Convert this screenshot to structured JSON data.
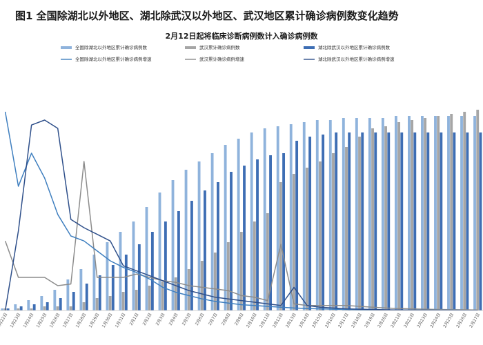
{
  "chart_data": {
    "type": "bar",
    "title": "图1 全国除湖北以外地区、湖北除武汉以外地区、武汉地区累计确诊病例数变化趋势",
    "subtitle": "2月12日起将临床诊断病例数计入确诊病例数",
    "colors": {
      "national_bar": "#8fb3dc",
      "wuhan_bar": "#a6a6a6",
      "hubei_bar": "#3e6eb4",
      "national_line": "#3f7fbf",
      "wuhan_line": "#8c8c8c",
      "hubei_line": "#2e4f8a"
    },
    "categories": [
      "1月22日",
      "1月23日",
      "1月24日",
      "1月25日",
      "1月26日",
      "1月27日",
      "1月28日",
      "1月29日",
      "1月30日",
      "1月31日",
      "2月1日",
      "2月2日",
      "2月3日",
      "2月4日",
      "2月5日",
      "2月6日",
      "2月7日",
      "2月8日",
      "2月9日",
      "2月10日",
      "2月11日",
      "2月12日",
      "2月13日",
      "2月14日",
      "2月15日",
      "2月16日",
      "2月17日",
      "2月18日",
      "2月19日",
      "2月20日",
      "2月21日",
      "2月22日",
      "2月23日",
      "2月24日",
      "2月25日",
      "2月26日",
      "2月27日"
    ],
    "legend": [
      {
        "label": "全国除湖北以外地区累计确诊病例数",
        "series": "national_cum",
        "kind": "bar",
        "color_key": "national_bar"
      },
      {
        "label": "武汉累计确诊病例数",
        "series": "wuhan_cum",
        "kind": "bar",
        "color_key": "wuhan_bar"
      },
      {
        "label": "湖北除武汉以外地区累计确诊病例数",
        "series": "hubei_cum",
        "kind": "bar",
        "color_key": "hubei_bar"
      },
      {
        "label": "全国除湖北以外地区累计确诊病例增速",
        "series": "national_growth",
        "kind": "line",
        "color_key": "national_line"
      },
      {
        "label": "武汉累计确诊病例增速",
        "series": "wuhan_growth",
        "kind": "line",
        "color_key": "wuhan_line"
      },
      {
        "label": "湖北除武汉以外地区累计确诊病例增速",
        "series": "hubei_growth",
        "kind": "line",
        "color_key": "hubei_line"
      }
    ],
    "series": [
      {
        "name": "全国除湖北以外地区累计确诊病例数",
        "key": "national_cum",
        "axis": "bar",
        "values": [
          1,
          3,
          5,
          7,
          10,
          15,
          20,
          27,
          33,
          38,
          43,
          50,
          57,
          63,
          68,
          72,
          76,
          80,
          83,
          86,
          88,
          89,
          90,
          91,
          92,
          92,
          93,
          93,
          93,
          93,
          94,
          94,
          94,
          94,
          94,
          94,
          94
        ]
      },
      {
        "name": "武汉累计确诊病例数",
        "key": "wuhan_cum",
        "axis": "bar",
        "values": [
          1,
          1,
          1,
          2,
          2,
          2,
          4,
          6,
          7,
          9,
          10,
          12,
          14,
          16,
          20,
          24,
          28,
          33,
          38,
          43,
          47,
          62,
          66,
          69,
          72,
          76,
          79,
          84,
          88,
          89,
          91,
          92,
          93,
          94,
          95,
          96,
          97
        ]
      },
      {
        "name": "湖北除武汉以外地区累计确诊病例数",
        "key": "hubei_cum",
        "axis": "bar",
        "values": [
          1,
          2,
          3,
          4,
          6,
          9,
          13,
          17,
          22,
          27,
          32,
          38,
          43,
          48,
          53,
          58,
          62,
          67,
          70,
          73,
          75,
          76,
          82,
          84,
          85,
          86,
          86,
          86,
          86,
          86,
          86,
          86,
          86,
          86,
          86,
          86,
          86
        ]
      },
      {
        "name": "全国除湖北以外地区累计确诊病例增速",
        "key": "national_growth",
        "axis": "line",
        "values": [
          120,
          75,
          95,
          80,
          58,
          45,
          42,
          36,
          30,
          26,
          23,
          19,
          14,
          11,
          9,
          7,
          5.5,
          4.5,
          3.5,
          3,
          2.5,
          2,
          1.5,
          1.2,
          1,
          0.8,
          0.6,
          0.5,
          0.4,
          0.3,
          0.3,
          0.2,
          0.2,
          0.2,
          0.2,
          0.1,
          0.1
        ]
      },
      {
        "name": "武汉累计确诊病例增速",
        "key": "wuhan_growth",
        "axis": "line",
        "values": [
          42,
          20,
          20,
          20,
          15,
          16,
          90,
          20,
          20,
          20,
          22,
          20,
          18,
          17,
          15,
          14,
          13,
          12,
          9,
          8,
          6,
          40,
          4,
          3,
          3,
          3,
          3,
          2.5,
          2,
          1.5,
          1.2,
          1,
          0.8,
          0.6,
          0.5,
          0.4,
          0.3
        ]
      },
      {
        "name": "湖北除武汉以外地区累计确诊病例增速",
        "key": "hubei_growth",
        "axis": "line",
        "values": [
          0,
          48,
          112,
          115,
          110,
          55,
          50,
          46,
          42,
          27,
          24,
          21,
          18,
          15,
          12,
          10,
          8,
          7,
          6,
          5,
          4,
          3,
          14,
          3,
          2,
          1.5,
          1,
          0.8,
          0.6,
          0.4,
          0.3,
          0.2,
          0.2,
          0.1,
          0.1,
          0.1,
          0.1
        ]
      }
    ],
    "ylim_bar": [
      0,
      100
    ],
    "ylim_line": [
      0,
      125
    ],
    "grid": false,
    "legend_position": "top"
  }
}
